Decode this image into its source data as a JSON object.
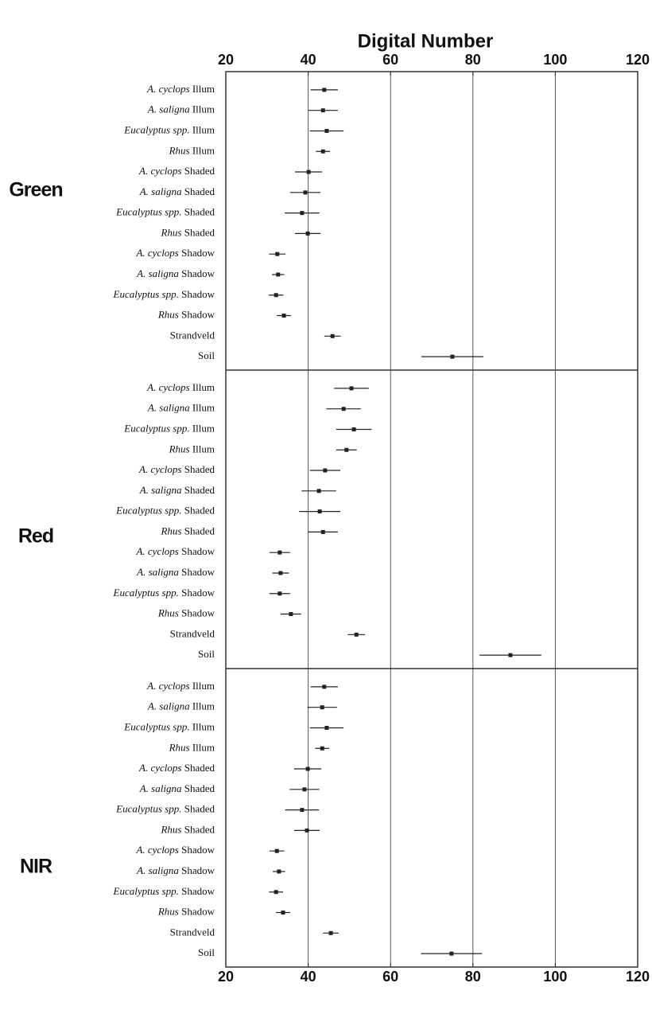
{
  "chart_data": {
    "type": "dot",
    "xlabel": "Digital Number",
    "xlim": [
      20,
      120
    ],
    "xticks": [
      20,
      40,
      60,
      80,
      100,
      120
    ],
    "grid": true,
    "color": "#222222",
    "panels": [
      {
        "name": "Green",
        "categories": [
          "A. cyclops Illum",
          "A. saligna Illum",
          "Eucalyptus spp. Illum",
          "Rhus Illum",
          "A. cyclops Shaded",
          "A. saligna Shaded",
          "Eucalyptus spp. Shaded",
          "Rhus Shaded",
          "A. cyclops Shadow",
          "A. saligna Shadow",
          "Eucalyptus spp. Shadow",
          "Rhus Shadow",
          "Strandveld",
          "Soil"
        ],
        "values": [
          43.9,
          43.6,
          44.5,
          43.6,
          40.1,
          39.3,
          38.5,
          39.9,
          32.5,
          32.7,
          32.2,
          34.1,
          45.9,
          75.0
        ],
        "errors": [
          3.3,
          3.6,
          4.1,
          1.7,
          3.3,
          3.7,
          4.2,
          3.1,
          2.0,
          1.5,
          1.8,
          1.7,
          2.0,
          7.5
        ]
      },
      {
        "name": "Red",
        "categories": [
          "A. cyclops Illum",
          "A. saligna Illum",
          "Eucalyptus spp. Illum",
          "Rhus Illum",
          "A. cyclops Shaded",
          "A. saligna Shaded",
          "Eucalyptus spp. Shaded",
          "Rhus Shaded",
          "A. cyclops Shadow",
          "A. saligna Shadow",
          "Eucalyptus spp. Shadow",
          "Rhus Shadow",
          "Strandveld",
          "Soil"
        ],
        "values": [
          50.5,
          48.6,
          51.1,
          49.3,
          44.1,
          42.6,
          42.8,
          43.6,
          33.1,
          33.3,
          33.1,
          35.8,
          51.7,
          89.1
        ],
        "errors": [
          4.2,
          4.2,
          4.3,
          2.5,
          3.7,
          4.2,
          5.0,
          3.6,
          2.5,
          2.0,
          2.5,
          2.5,
          2.1,
          7.5
        ]
      },
      {
        "name": "NIR",
        "categories": [
          "A. cyclops Illum",
          "A. saligna Illum",
          "Eucalyptus spp. Illum",
          "Rhus Illum",
          "A. cyclops Shaded",
          "A. saligna Shaded",
          "Eucalyptus spp. Shaded",
          "Rhus Shaded",
          "A. cyclops Shadow",
          "A. saligna Shadow",
          "Eucalyptus spp. Shadow",
          "Rhus Shadow",
          "Strandveld",
          "Soil"
        ],
        "values": [
          43.9,
          43.4,
          44.5,
          43.4,
          39.9,
          39.1,
          38.5,
          39.7,
          32.4,
          32.9,
          32.2,
          33.9,
          45.5,
          74.8
        ],
        "errors": [
          3.3,
          3.6,
          4.1,
          1.7,
          3.3,
          3.6,
          4.1,
          3.1,
          1.8,
          1.5,
          1.7,
          1.7,
          1.9,
          7.4
        ]
      }
    ]
  }
}
